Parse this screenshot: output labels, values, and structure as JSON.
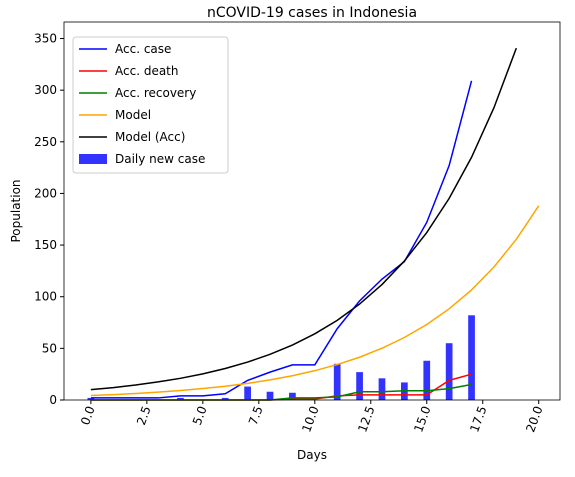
{
  "chart_data": {
    "type": "line",
    "title": "nCOVID-19 cases in Indonesia",
    "x_label": "Days",
    "y_label": "Population",
    "xlim": [
      -1.2,
      20.95
    ],
    "ylim": [
      0,
      366
    ],
    "xticks": [
      {
        "value": 0,
        "label": "0.0"
      },
      {
        "value": 2.5,
        "label": "2.5"
      },
      {
        "value": 5,
        "label": "5.0"
      },
      {
        "value": 7.5,
        "label": "7.5"
      },
      {
        "value": 10,
        "label": "10.0"
      },
      {
        "value": 12.5,
        "label": "12.5"
      },
      {
        "value": 15,
        "label": "15.0"
      },
      {
        "value": 17.5,
        "label": "17.5"
      },
      {
        "value": 20,
        "label": "20.0"
      }
    ],
    "yticks": [
      0,
      50,
      100,
      150,
      200,
      250,
      300,
      350
    ],
    "legend": "upper left",
    "series": [
      {
        "name": "Acc. case",
        "type": "line",
        "color": "#0000ff",
        "x": [
          0,
          1,
          2,
          3,
          4,
          5,
          6,
          7,
          8,
          9,
          10,
          11,
          12,
          13,
          14,
          15,
          16,
          17
        ],
        "values": [
          2,
          2,
          2,
          2,
          4,
          4,
          6,
          19,
          27,
          34,
          34,
          69,
          96,
          117,
          134,
          172,
          227,
          309
        ]
      },
      {
        "name": "Acc. death",
        "type": "line",
        "color": "#ff0000",
        "x": [
          0,
          1,
          2,
          3,
          4,
          5,
          6,
          7,
          8,
          9,
          10,
          11,
          12,
          13,
          14,
          15,
          16,
          17
        ],
        "values": [
          0,
          0,
          0,
          0,
          0,
          0,
          0,
          0,
          0,
          1,
          1,
          4,
          5,
          5,
          5,
          5,
          19,
          25
        ]
      },
      {
        "name": "Acc. recovery",
        "type": "line",
        "color": "#008000",
        "x": [
          0,
          1,
          2,
          3,
          4,
          5,
          6,
          7,
          8,
          9,
          10,
          11,
          12,
          13,
          14,
          15,
          16,
          17
        ],
        "values": [
          0,
          0,
          0,
          0,
          0,
          0,
          0,
          0,
          0,
          2,
          2,
          3,
          8,
          8,
          9,
          9,
          11,
          15
        ]
      },
      {
        "name": "Model",
        "type": "line",
        "color": "#ffa500",
        "x": [
          0,
          1,
          2,
          3,
          4,
          5,
          6,
          7,
          8,
          9,
          10,
          11,
          12,
          13,
          14,
          15,
          16,
          17,
          18,
          19,
          20
        ],
        "values": [
          4.3,
          5.2,
          6.3,
          7.6,
          9.2,
          11.1,
          13.3,
          16.1,
          19.5,
          23.5,
          28.4,
          34.3,
          41.4,
          50.1,
          60.5,
          73.1,
          88.3,
          106.6,
          128.8,
          155.6,
          188
        ]
      },
      {
        "name": "Model (Acc)",
        "type": "line",
        "color": "#000000",
        "x": [
          0,
          1,
          2,
          3,
          4,
          5,
          6,
          7,
          8,
          9,
          10,
          11,
          12,
          13,
          14,
          15,
          16,
          17,
          18,
          19
        ],
        "values": [
          10,
          12,
          14.5,
          17.5,
          21,
          25.3,
          30.5,
          36.7,
          44.2,
          53.2,
          64.1,
          77.1,
          92.9,
          111.8,
          134.6,
          162.1,
          195.2,
          235,
          283,
          340.7
        ]
      },
      {
        "name": "Daily new case",
        "type": "bar",
        "color": "#3333ff",
        "x": [
          0,
          1,
          2,
          3,
          4,
          5,
          6,
          7,
          8,
          9,
          10,
          11,
          12,
          13,
          14,
          15,
          16,
          17
        ],
        "values": [
          2,
          0,
          0,
          0,
          2,
          0,
          2,
          13,
          8,
          7,
          0,
          35,
          27,
          21,
          17,
          38,
          55,
          82
        ]
      }
    ]
  }
}
